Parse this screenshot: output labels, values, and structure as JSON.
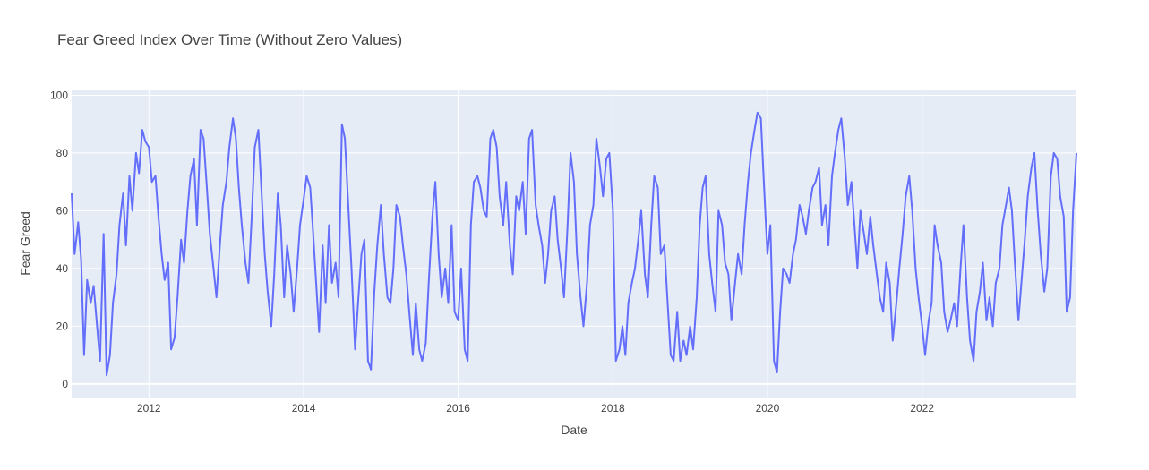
{
  "chart_data": {
    "type": "line",
    "title": "Fear Greed Index Over Time (Without Zero Values)",
    "xlabel": "Date",
    "ylabel": "Fear Greed",
    "x_range": [
      "2011-01-01",
      "2023-12-31"
    ],
    "ylim": [
      -5,
      102
    ],
    "x_ticks": [
      "2012",
      "2014",
      "2016",
      "2018",
      "2020",
      "2022"
    ],
    "y_ticks": [
      0,
      20,
      40,
      60,
      80,
      100
    ],
    "grid": true,
    "legend": "none",
    "colors": {
      "line": "#636efa",
      "plot_bg": "#e5ecf6",
      "grid": "#ffffff",
      "text": "#444444"
    },
    "series": [
      {
        "x": [
          "2011-01-01",
          "2011-01-15",
          "2011-02-01",
          "2011-02-15",
          "2011-03-01",
          "2011-03-15",
          "2011-04-01",
          "2011-04-15",
          "2011-05-01",
          "2011-05-15",
          "2011-06-01",
          "2011-06-15",
          "2011-07-01",
          "2011-07-15",
          "2011-08-01",
          "2011-08-15",
          "2011-09-01",
          "2011-09-15",
          "2011-10-01",
          "2011-10-15",
          "2011-11-01",
          "2011-11-15",
          "2011-12-01",
          "2011-12-15",
          "2012-01-01",
          "2012-01-15",
          "2012-02-01",
          "2012-02-15",
          "2012-03-01",
          "2012-03-15",
          "2012-04-01",
          "2012-04-15",
          "2012-05-01",
          "2012-05-15",
          "2012-06-01",
          "2012-06-15",
          "2012-07-01",
          "2012-07-15",
          "2012-08-01",
          "2012-08-15",
          "2012-09-01",
          "2012-09-15",
          "2012-10-01",
          "2012-10-15",
          "2012-11-01",
          "2012-11-15",
          "2012-12-01",
          "2012-12-15",
          "2013-01-01",
          "2013-01-15",
          "2013-02-01",
          "2013-02-15",
          "2013-03-01",
          "2013-03-15",
          "2013-04-01",
          "2013-04-15",
          "2013-05-01",
          "2013-05-15",
          "2013-06-01",
          "2013-06-15",
          "2013-07-01",
          "2013-07-15",
          "2013-08-01",
          "2013-08-15",
          "2013-09-01",
          "2013-09-15",
          "2013-10-01",
          "2013-10-15",
          "2013-11-01",
          "2013-11-15",
          "2013-12-01",
          "2013-12-15",
          "2014-01-01",
          "2014-01-15",
          "2014-02-01",
          "2014-02-15",
          "2014-03-01",
          "2014-03-15",
          "2014-04-01",
          "2014-04-15",
          "2014-05-01",
          "2014-05-15",
          "2014-06-01",
          "2014-06-15",
          "2014-07-01",
          "2014-07-15",
          "2014-08-01",
          "2014-08-15",
          "2014-09-01",
          "2014-09-15",
          "2014-10-01",
          "2014-10-15",
          "2014-11-01",
          "2014-11-15",
          "2014-12-01",
          "2014-12-15",
          "2015-01-01",
          "2015-01-15",
          "2015-02-01",
          "2015-02-15",
          "2015-03-01",
          "2015-03-15",
          "2015-04-01",
          "2015-04-15",
          "2015-05-01",
          "2015-05-15",
          "2015-06-01",
          "2015-06-15",
          "2015-07-01",
          "2015-07-15",
          "2015-08-01",
          "2015-08-15",
          "2015-09-01",
          "2015-09-15",
          "2015-10-01",
          "2015-10-15",
          "2015-11-01",
          "2015-11-15",
          "2015-12-01",
          "2015-12-15",
          "2016-01-01",
          "2016-01-15",
          "2016-02-01",
          "2016-02-15",
          "2016-03-01",
          "2016-03-15",
          "2016-04-01",
          "2016-04-15",
          "2016-05-01",
          "2016-05-15",
          "2016-06-01",
          "2016-06-15",
          "2016-07-01",
          "2016-07-15",
          "2016-08-01",
          "2016-08-15",
          "2016-09-01",
          "2016-09-15",
          "2016-10-01",
          "2016-10-15",
          "2016-11-01",
          "2016-11-15",
          "2016-12-01",
          "2016-12-15",
          "2017-01-01",
          "2017-01-15",
          "2017-02-01",
          "2017-02-15",
          "2017-03-01",
          "2017-03-15",
          "2017-04-01",
          "2017-04-15",
          "2017-05-01",
          "2017-05-15",
          "2017-06-01",
          "2017-06-15",
          "2017-07-01",
          "2017-07-15",
          "2017-08-01",
          "2017-08-15",
          "2017-09-01",
          "2017-09-15",
          "2017-10-01",
          "2017-10-15",
          "2017-11-01",
          "2017-11-15",
          "2017-12-01",
          "2017-12-15",
          "2018-01-01",
          "2018-01-15",
          "2018-02-01",
          "2018-02-15",
          "2018-03-01",
          "2018-03-15",
          "2018-04-01",
          "2018-04-15",
          "2018-05-01",
          "2018-05-15",
          "2018-06-01",
          "2018-06-15",
          "2018-07-01",
          "2018-07-15",
          "2018-08-01",
          "2018-08-15",
          "2018-09-01",
          "2018-09-15",
          "2018-10-01",
          "2018-10-15",
          "2018-11-01",
          "2018-11-15",
          "2018-12-01",
          "2018-12-15",
          "2019-01-01",
          "2019-01-15",
          "2019-02-01",
          "2019-02-15",
          "2019-03-01",
          "2019-03-15",
          "2019-04-01",
          "2019-04-15",
          "2019-05-01",
          "2019-05-15",
          "2019-06-01",
          "2019-06-15",
          "2019-07-01",
          "2019-07-15",
          "2019-08-01",
          "2019-08-15",
          "2019-09-01",
          "2019-09-15",
          "2019-10-01",
          "2019-10-15",
          "2019-11-01",
          "2019-11-15",
          "2019-12-01",
          "2019-12-15",
          "2020-01-01",
          "2020-01-15",
          "2020-02-01",
          "2020-02-15",
          "2020-03-01",
          "2020-03-15",
          "2020-04-01",
          "2020-04-15",
          "2020-05-01",
          "2020-05-15",
          "2020-06-01",
          "2020-06-15",
          "2020-07-01",
          "2020-07-15",
          "2020-08-01",
          "2020-08-15",
          "2020-09-01",
          "2020-09-15",
          "2020-10-01",
          "2020-10-15",
          "2020-11-01",
          "2020-11-15",
          "2020-12-01",
          "2020-12-15",
          "2021-01-01",
          "2021-01-15",
          "2021-02-01",
          "2021-02-15",
          "2021-03-01",
          "2021-03-15",
          "2021-04-01",
          "2021-04-15",
          "2021-05-01",
          "2021-05-15",
          "2021-06-01",
          "2021-06-15",
          "2021-07-01",
          "2021-07-15",
          "2021-08-01",
          "2021-08-15",
          "2021-09-01",
          "2021-09-15",
          "2021-10-01",
          "2021-10-15",
          "2021-11-01",
          "2021-11-15",
          "2021-12-01",
          "2021-12-15",
          "2022-01-01",
          "2022-01-15",
          "2022-02-01",
          "2022-02-15",
          "2022-03-01",
          "2022-03-15",
          "2022-04-01",
          "2022-04-15",
          "2022-05-01",
          "2022-05-15",
          "2022-06-01",
          "2022-06-15",
          "2022-07-01",
          "2022-07-15",
          "2022-08-01",
          "2022-08-15",
          "2022-09-01",
          "2022-09-15",
          "2022-10-01",
          "2022-10-15",
          "2022-11-01",
          "2022-11-15",
          "2022-12-01",
          "2022-12-15",
          "2023-01-01",
          "2023-01-15",
          "2023-02-01",
          "2023-02-15",
          "2023-03-01",
          "2023-03-15",
          "2023-04-01",
          "2023-04-15",
          "2023-05-01",
          "2023-05-15",
          "2023-06-01",
          "2023-06-15",
          "2023-07-01",
          "2023-07-15",
          "2023-08-01",
          "2023-08-15",
          "2023-09-01",
          "2023-09-15",
          "2023-10-01",
          "2023-10-15",
          "2023-11-01",
          "2023-11-15",
          "2023-12-01",
          "2023-12-15",
          "2023-12-31"
        ],
        "y": [
          66,
          45,
          56,
          43,
          10,
          36,
          28,
          34,
          20,
          8,
          52,
          3,
          10,
          28,
          38,
          55,
          66,
          48,
          72,
          60,
          80,
          73,
          88,
          84,
          82,
          70,
          72,
          58,
          45,
          36,
          42,
          12,
          16,
          30,
          50,
          42,
          60,
          72,
          78,
          55,
          88,
          85,
          68,
          52,
          40,
          30,
          48,
          62,
          70,
          82,
          92,
          85,
          68,
          55,
          42,
          35,
          58,
          82,
          88,
          68,
          45,
          32,
          20,
          38,
          66,
          55,
          30,
          48,
          38,
          25,
          40,
          55,
          64,
          72,
          68,
          52,
          35,
          18,
          48,
          28,
          55,
          35,
          42,
          30,
          90,
          85,
          60,
          40,
          12,
          28,
          45,
          50,
          8,
          5,
          32,
          48,
          62,
          45,
          30,
          28,
          40,
          62,
          58,
          48,
          38,
          25,
          10,
          28,
          12,
          8,
          14,
          35,
          58,
          70,
          45,
          30,
          40,
          28,
          55,
          25,
          22,
          40,
          12,
          8,
          55,
          70,
          72,
          68,
          60,
          58,
          85,
          88,
          82,
          65,
          55,
          70,
          48,
          38,
          65,
          60,
          70,
          52,
          85,
          88,
          62,
          55,
          48,
          35,
          45,
          60,
          65,
          50,
          40,
          30,
          55,
          80,
          70,
          45,
          30,
          20,
          35,
          55,
          62,
          85,
          75,
          65,
          78,
          80,
          60,
          8,
          12,
          20,
          10,
          28,
          35,
          40,
          50,
          60,
          38,
          30,
          55,
          72,
          68,
          45,
          48,
          30,
          10,
          8,
          25,
          8,
          15,
          10,
          20,
          12,
          30,
          55,
          68,
          72,
          45,
          35,
          25,
          60,
          55,
          42,
          38,
          22,
          35,
          45,
          38,
          55,
          70,
          80,
          88,
          94,
          92,
          70,
          45,
          55,
          8,
          4,
          25,
          40,
          38,
          35,
          45,
          50,
          62,
          58,
          52,
          60,
          68,
          70,
          75,
          55,
          62,
          48,
          72,
          80,
          88,
          92,
          78,
          62,
          70,
          55,
          40,
          60,
          52,
          45,
          58,
          48,
          38,
          30,
          25,
          42,
          35,
          15,
          28,
          40,
          52,
          65,
          72,
          60,
          40,
          30,
          20,
          10,
          22,
          28,
          55,
          48,
          42,
          25,
          18,
          22,
          28,
          20,
          40,
          55,
          30,
          15,
          8,
          25,
          32,
          42,
          22,
          30,
          20,
          35,
          40,
          55,
          62,
          68,
          60,
          42,
          22,
          35,
          50,
          65,
          75,
          80,
          60,
          45,
          32,
          40,
          72,
          80,
          78,
          65,
          58,
          25,
          30,
          60,
          80
        ]
      }
    ]
  }
}
